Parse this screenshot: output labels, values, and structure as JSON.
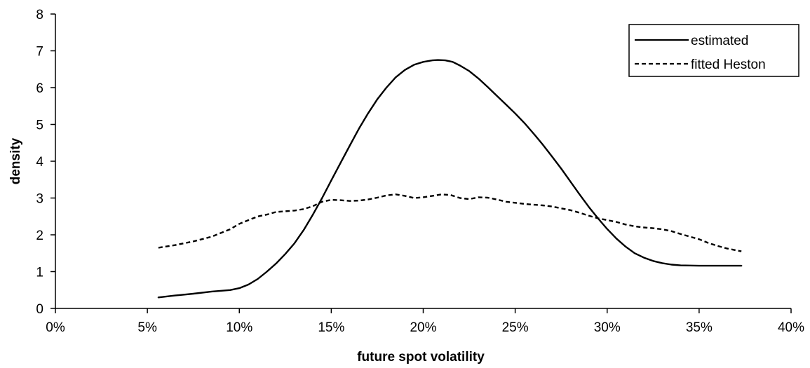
{
  "chart_data": {
    "type": "line",
    "title": "",
    "xlabel": "future spot volatility",
    "ylabel": "density",
    "xlim": [
      0,
      0.4
    ],
    "ylim": [
      0,
      8
    ],
    "x_ticks": [
      0,
      0.05,
      0.1,
      0.15,
      0.2,
      0.25,
      0.3,
      0.35,
      0.4
    ],
    "x_tick_labels": [
      "0%",
      "5%",
      "10%",
      "15%",
      "20%",
      "25%",
      "30%",
      "35%",
      "40%"
    ],
    "y_ticks": [
      0,
      1,
      2,
      3,
      4,
      5,
      6,
      7,
      8
    ],
    "y_tick_labels": [
      "0",
      "1",
      "2",
      "3",
      "4",
      "5",
      "6",
      "7",
      "8"
    ],
    "grid": false,
    "legend_position": "top-right",
    "series": [
      {
        "name": "estimated",
        "style": "solid",
        "color": "#000000",
        "points": [
          [
            0.056,
            0.3
          ],
          [
            0.065,
            0.35
          ],
          [
            0.075,
            0.4
          ],
          [
            0.085,
            0.46
          ],
          [
            0.095,
            0.5
          ],
          [
            0.1,
            0.55
          ],
          [
            0.105,
            0.65
          ],
          [
            0.11,
            0.8
          ],
          [
            0.115,
            1.0
          ],
          [
            0.12,
            1.22
          ],
          [
            0.125,
            1.48
          ],
          [
            0.13,
            1.77
          ],
          [
            0.135,
            2.13
          ],
          [
            0.14,
            2.55
          ],
          [
            0.145,
            3.0
          ],
          [
            0.15,
            3.48
          ],
          [
            0.155,
            3.95
          ],
          [
            0.16,
            4.42
          ],
          [
            0.165,
            4.88
          ],
          [
            0.17,
            5.3
          ],
          [
            0.175,
            5.68
          ],
          [
            0.18,
            6.0
          ],
          [
            0.185,
            6.28
          ],
          [
            0.19,
            6.48
          ],
          [
            0.195,
            6.62
          ],
          [
            0.2,
            6.7
          ],
          [
            0.205,
            6.74
          ],
          [
            0.208,
            6.75
          ],
          [
            0.212,
            6.74
          ],
          [
            0.216,
            6.7
          ],
          [
            0.22,
            6.6
          ],
          [
            0.225,
            6.45
          ],
          [
            0.23,
            6.25
          ],
          [
            0.235,
            6.02
          ],
          [
            0.24,
            5.78
          ],
          [
            0.245,
            5.54
          ],
          [
            0.25,
            5.3
          ],
          [
            0.255,
            5.04
          ],
          [
            0.26,
            4.75
          ],
          [
            0.265,
            4.45
          ],
          [
            0.27,
            4.13
          ],
          [
            0.275,
            3.8
          ],
          [
            0.28,
            3.45
          ],
          [
            0.285,
            3.1
          ],
          [
            0.29,
            2.76
          ],
          [
            0.295,
            2.45
          ],
          [
            0.3,
            2.16
          ],
          [
            0.305,
            1.9
          ],
          [
            0.31,
            1.68
          ],
          [
            0.315,
            1.5
          ],
          [
            0.32,
            1.38
          ],
          [
            0.325,
            1.29
          ],
          [
            0.33,
            1.23
          ],
          [
            0.335,
            1.19
          ],
          [
            0.34,
            1.17
          ],
          [
            0.35,
            1.16
          ],
          [
            0.36,
            1.16
          ],
          [
            0.373,
            1.16
          ]
        ]
      },
      {
        "name": "fitted Heston",
        "style": "dashed",
        "color": "#000000",
        "points": [
          [
            0.056,
            1.65
          ],
          [
            0.065,
            1.72
          ],
          [
            0.075,
            1.82
          ],
          [
            0.085,
            1.95
          ],
          [
            0.095,
            2.15
          ],
          [
            0.1,
            2.3
          ],
          [
            0.105,
            2.4
          ],
          [
            0.11,
            2.5
          ],
          [
            0.115,
            2.55
          ],
          [
            0.12,
            2.62
          ],
          [
            0.125,
            2.64
          ],
          [
            0.13,
            2.66
          ],
          [
            0.135,
            2.7
          ],
          [
            0.14,
            2.78
          ],
          [
            0.145,
            2.9
          ],
          [
            0.15,
            2.95
          ],
          [
            0.155,
            2.94
          ],
          [
            0.16,
            2.92
          ],
          [
            0.165,
            2.93
          ],
          [
            0.17,
            2.96
          ],
          [
            0.175,
            3.01
          ],
          [
            0.18,
            3.07
          ],
          [
            0.185,
            3.1
          ],
          [
            0.19,
            3.06
          ],
          [
            0.195,
            3.0
          ],
          [
            0.2,
            3.02
          ],
          [
            0.205,
            3.06
          ],
          [
            0.21,
            3.1
          ],
          [
            0.215,
            3.08
          ],
          [
            0.22,
            3.0
          ],
          [
            0.225,
            2.97
          ],
          [
            0.23,
            3.02
          ],
          [
            0.235,
            3.01
          ],
          [
            0.24,
            2.96
          ],
          [
            0.245,
            2.9
          ],
          [
            0.25,
            2.87
          ],
          [
            0.255,
            2.84
          ],
          [
            0.26,
            2.82
          ],
          [
            0.265,
            2.8
          ],
          [
            0.27,
            2.77
          ],
          [
            0.275,
            2.72
          ],
          [
            0.28,
            2.67
          ],
          [
            0.285,
            2.6
          ],
          [
            0.29,
            2.52
          ],
          [
            0.295,
            2.45
          ],
          [
            0.3,
            2.4
          ],
          [
            0.305,
            2.35
          ],
          [
            0.31,
            2.28
          ],
          [
            0.315,
            2.23
          ],
          [
            0.32,
            2.2
          ],
          [
            0.325,
            2.18
          ],
          [
            0.33,
            2.15
          ],
          [
            0.335,
            2.1
          ],
          [
            0.34,
            2.02
          ],
          [
            0.345,
            1.95
          ],
          [
            0.35,
            1.88
          ],
          [
            0.355,
            1.78
          ],
          [
            0.36,
            1.7
          ],
          [
            0.365,
            1.63
          ],
          [
            0.373,
            1.55
          ]
        ]
      }
    ]
  }
}
